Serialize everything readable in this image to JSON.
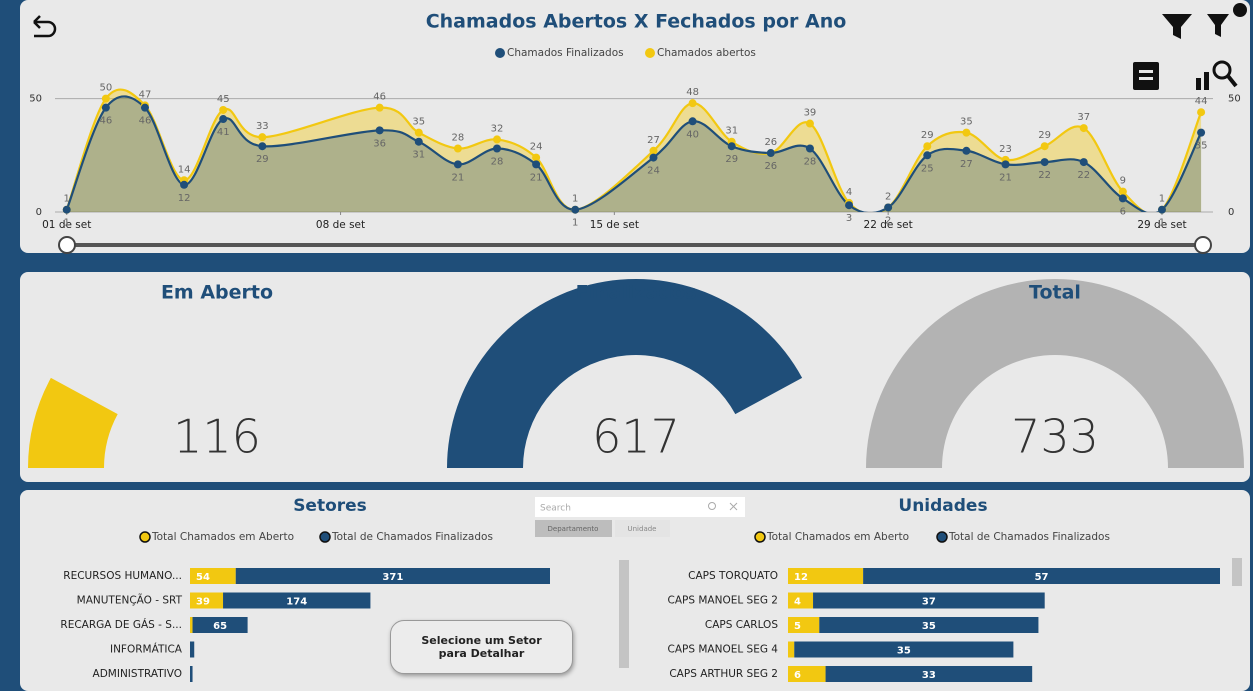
{
  "chart_data": [
    {
      "type": "line",
      "title": "Chamados Abertos X Fechados por Ano",
      "x": [
        1,
        2,
        3,
        4,
        5,
        6,
        9,
        10,
        11,
        12,
        13,
        14,
        16,
        17,
        18,
        19,
        20,
        21,
        22,
        23,
        24,
        25,
        26,
        27,
        28,
        29,
        30
      ],
      "xlim": [
        0.7,
        30.1
      ],
      "xticks": [
        {
          "value": 1,
          "label": "01 de set"
        },
        {
          "value": 8,
          "label": "08 de set"
        },
        {
          "value": 15,
          "label": "15 de set"
        },
        {
          "value": 22,
          "label": "22 de set"
        },
        {
          "value": 29,
          "label": "29 de set"
        }
      ],
      "ylim": [
        0,
        56
      ],
      "yticks": [
        0,
        50
      ],
      "y2lim": [
        0,
        56
      ],
      "y2ticks": [
        0,
        50
      ],
      "grid": true,
      "series": [
        {
          "name": "Chamados Finalizados",
          "color": "#1f4e79",
          "values": [
            1,
            46,
            46,
            12,
            41,
            29,
            36,
            31,
            21,
            28,
            21,
            1,
            24,
            40,
            29,
            26,
            28,
            3,
            2,
            25,
            27,
            21,
            22,
            22,
            6,
            1,
            35
          ]
        },
        {
          "name": "Chamados abertos",
          "color": "#f2c811",
          "values": [
            1,
            50,
            47,
            14,
            45,
            33,
            46,
            35,
            28,
            32,
            24,
            1,
            27,
            48,
            31,
            26,
            39,
            4,
            2,
            29,
            35,
            23,
            29,
            37,
            9,
            1,
            44
          ]
        }
      ]
    },
    {
      "type": "gauge",
      "title": "Em Aberto",
      "value": 116,
      "ylim": [
        0,
        733
      ],
      "color": "#f2c811"
    },
    {
      "type": "gauge",
      "title": "Finalizados",
      "value": 617,
      "ylim": [
        0,
        733
      ],
      "color": "#1f4e79"
    },
    {
      "type": "gauge",
      "title": "Total",
      "value": 733,
      "ylim": [
        0,
        733
      ],
      "color": "#b3b3b3"
    },
    {
      "type": "bar",
      "orientation": "horizontal",
      "stacked": true,
      "title": "Setores",
      "categories": [
        "RECURSOS HUMANO...",
        "MANUTENÇÃO - SRT",
        "RECARGA DE GÁS - S...",
        "INFORMÁTICA",
        "ADMINISTRATIVO"
      ],
      "series": [
        {
          "name": "Total Chamados em Aberto",
          "color": "#f2c811",
          "values": [
            54,
            39,
            3,
            0,
            0
          ]
        },
        {
          "name": "Total de Chamados Finalizados",
          "color": "#1f4e79",
          "values": [
            371,
            174,
            65,
            5,
            3
          ]
        }
      ]
    },
    {
      "type": "bar",
      "orientation": "horizontal",
      "stacked": true,
      "title": "Unidades",
      "categories": [
        "CAPS TORQUATO",
        "CAPS MANOEL SEG 2",
        "CAPS CARLOS",
        "CAPS MANOEL SEG 4",
        "CAPS ARTHUR SEG 2"
      ],
      "series": [
        {
          "name": "Total Chamados em Aberto",
          "color": "#f2c811",
          "values": [
            12,
            4,
            5,
            1,
            6
          ]
        },
        {
          "name": "Total de Chamados Finalizados",
          "color": "#1f4e79",
          "values": [
            57,
            37,
            35,
            35,
            33
          ]
        }
      ]
    }
  ],
  "search": {
    "placeholder": "Search",
    "tabs": [
      "Departamento",
      "Unidade"
    ]
  },
  "button": {
    "label": "Selecione um Setor para Detalhar"
  }
}
